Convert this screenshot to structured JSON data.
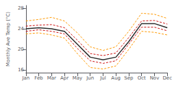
{
  "chart_data": {
    "type": "line",
    "ylabel": "Monthly Ave Temp (°C)",
    "categories": [
      "Jan",
      "Feb",
      "Mar",
      "Apr",
      "May",
      "Jun",
      "Jul",
      "Aug",
      "Sep",
      "Oct",
      "Nov",
      "Dec"
    ],
    "series": [
      {
        "color": "#ff9900",
        "line_style": "dashed",
        "values": [
          25.5,
          25.8,
          26.2,
          25.5,
          23.2,
          20.5,
          19.8,
          20.5,
          23.5,
          27.0,
          26.8,
          26.0
        ]
      },
      {
        "color": "#ff9900",
        "line_style": "dashed",
        "values": [
          23.0,
          23.2,
          22.8,
          22.2,
          19.2,
          16.5,
          16.2,
          16.8,
          20.0,
          23.5,
          23.3,
          22.8
        ]
      },
      {
        "color": "#cc1111",
        "line_style": "dashed",
        "values": [
          24.5,
          24.7,
          24.8,
          24.2,
          21.8,
          19.2,
          18.8,
          19.3,
          22.3,
          25.5,
          25.6,
          24.9
        ]
      },
      {
        "color": "#cc1111",
        "line_style": "dashed",
        "values": [
          23.5,
          23.8,
          23.5,
          23.0,
          20.2,
          17.8,
          17.3,
          17.8,
          21.0,
          24.3,
          24.3,
          23.6
        ]
      },
      {
        "color": "#2a2a2a",
        "line_style": "solid",
        "values": [
          24.0,
          24.2,
          24.0,
          23.5,
          21.0,
          18.5,
          18.0,
          18.5,
          21.5,
          25.0,
          25.0,
          24.2
        ]
      }
    ],
    "ylim": [
      15.5,
      28.5
    ],
    "yticks": [
      16,
      20,
      24,
      28
    ],
    "grid": false
  }
}
